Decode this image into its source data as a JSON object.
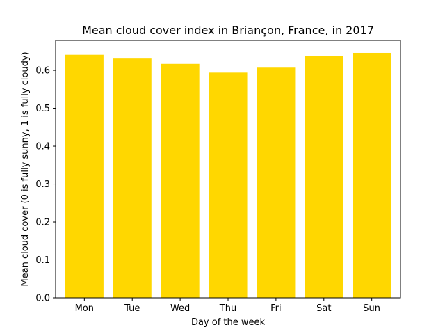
{
  "chart_data": {
    "type": "bar",
    "title": "Mean cloud cover index in Briançon, France, in 2017",
    "xlabel": "Day of the week",
    "ylabel": "Mean cloud cover (0 is fully sunny, 1 is fully cloudy)",
    "categories": [
      "Mon",
      "Tue",
      "Wed",
      "Thu",
      "Fri",
      "Sat",
      "Sun"
    ],
    "values": [
      0.641,
      0.631,
      0.617,
      0.594,
      0.607,
      0.637,
      0.646
    ],
    "ylim": [
      0,
      0.679
    ],
    "yticks": [
      0.0,
      0.1,
      0.2,
      0.3,
      0.4,
      0.5,
      0.6
    ],
    "ytick_labels": [
      "0.0",
      "0.1",
      "0.2",
      "0.3",
      "0.4",
      "0.5",
      "0.6"
    ],
    "bar_color": "#FFD700",
    "grid": false,
    "legend": "none"
  }
}
